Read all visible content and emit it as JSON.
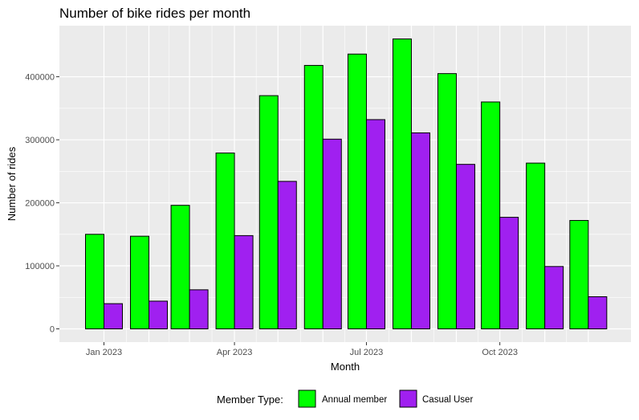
{
  "chart_data": {
    "type": "bar",
    "title": "Number of bike rides per month",
    "xlabel": "Month",
    "ylabel": "Number of rides",
    "months": [
      "2023-01",
      "2023-02",
      "2023-03",
      "2023-04",
      "2023-05",
      "2023-06",
      "2023-07",
      "2023-08",
      "2023-09",
      "2023-10",
      "2023-11",
      "2023-12"
    ],
    "x_ticks": [
      {
        "month": "2023-01",
        "label": "Jan 2023"
      },
      {
        "month": "2023-04",
        "label": "Apr 2023"
      },
      {
        "month": "2023-07",
        "label": "Jul 2023"
      },
      {
        "month": "2023-10",
        "label": "Oct 2023"
      }
    ],
    "y_ticks": [
      0,
      100000,
      200000,
      300000,
      400000
    ],
    "y_tick_labels": [
      "0",
      "100000",
      "200000",
      "300000",
      "400000"
    ],
    "ylim": [
      -21000,
      481000
    ],
    "grid": true,
    "legend": {
      "title": "Member Type:",
      "placement": "bottom"
    },
    "series": [
      {
        "name": "Annual member",
        "color": "#00ff00",
        "values": [
          150000,
          147000,
          196000,
          279000,
          370000,
          418000,
          436000,
          460000,
          405000,
          360000,
          263000,
          172000
        ]
      },
      {
        "name": "Casual User",
        "color": "#a020f0",
        "values": [
          40000,
          44000,
          62000,
          148000,
          234000,
          301000,
          332000,
          311000,
          261000,
          177000,
          99000,
          51000
        ]
      }
    ]
  }
}
